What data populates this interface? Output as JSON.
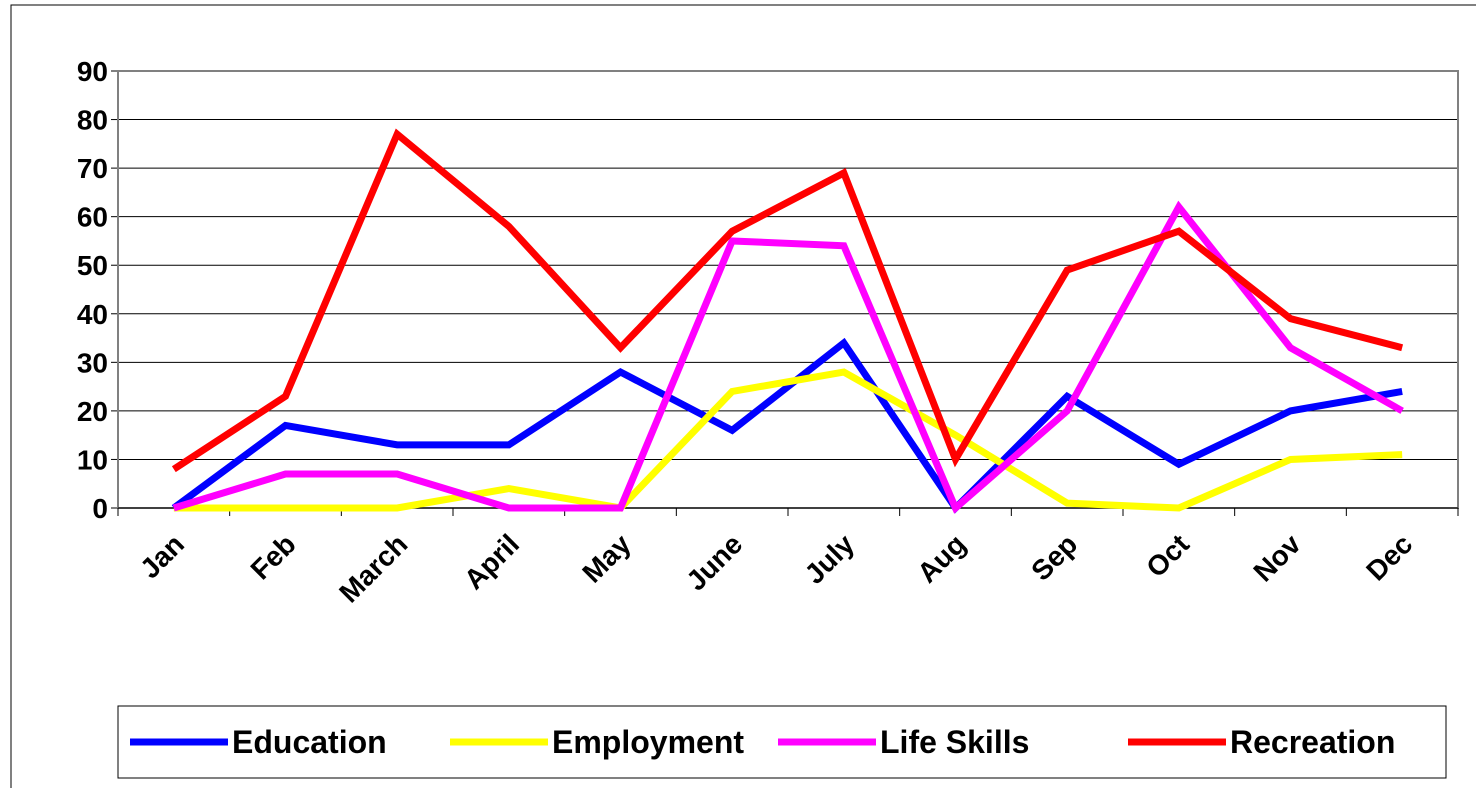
{
  "chart_data": {
    "type": "line",
    "categories": [
      "Jan",
      "Feb",
      "March",
      "April",
      "May",
      "June",
      "July",
      "Aug",
      "Sep",
      "Oct",
      "Nov",
      "Dec"
    ],
    "series": [
      {
        "name": "Education",
        "color": "#0000ff",
        "values": [
          0,
          17,
          13,
          13,
          28,
          16,
          34,
          0,
          23,
          9,
          20,
          24
        ]
      },
      {
        "name": "Employment",
        "color": "#ffff00",
        "values": [
          0,
          0,
          0,
          4,
          0,
          24,
          28,
          15,
          1,
          0,
          10,
          11
        ]
      },
      {
        "name": "Life Skills",
        "color": "#ff00ff",
        "values": [
          0,
          7,
          7,
          0,
          0,
          55,
          54,
          0,
          20,
          62,
          33,
          20
        ]
      },
      {
        "name": "Recreation",
        "color": "#ff0000",
        "values": [
          8,
          23,
          77,
          58,
          33,
          57,
          69,
          10,
          49,
          57,
          39,
          33
        ]
      }
    ],
    "ylim": [
      0,
      90
    ],
    "yticks": [
      0,
      10,
      20,
      30,
      40,
      50,
      60,
      70,
      80,
      90
    ],
    "grid": true,
    "legend": "bottom"
  }
}
